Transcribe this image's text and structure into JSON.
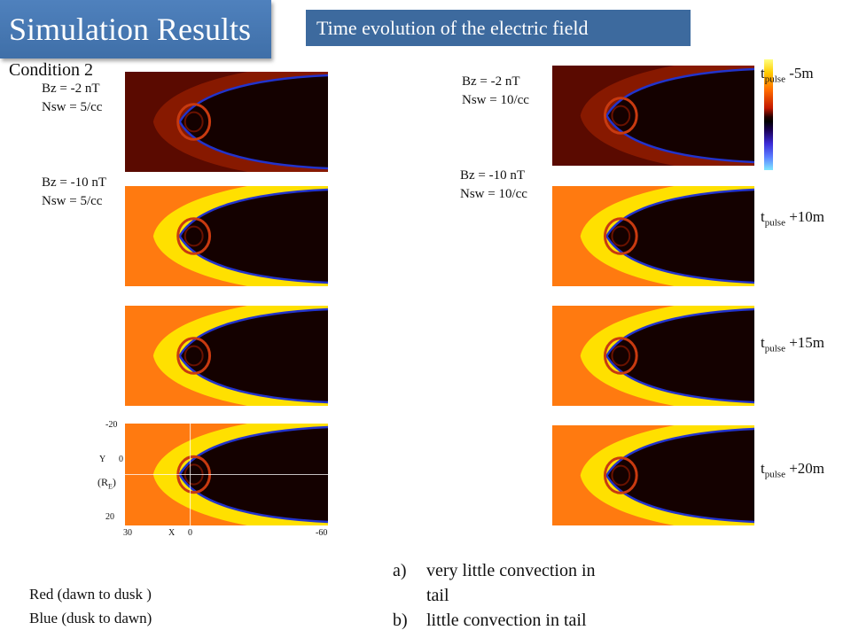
{
  "title": "Simulation Results",
  "subtitle": "Time evolution of the electric field",
  "condition": "Condition 2",
  "left_labels": [
    {
      "bz": "Bz = -2 nT",
      "nsw": "Nsw = 5/cc"
    },
    {
      "bz": "Bz = -10 nT",
      "nsw": "Nsw = 5/cc"
    }
  ],
  "right_labels": [
    {
      "bz": "Bz = -2 nT",
      "nsw": "Nsw = 10/cc"
    },
    {
      "bz": "Bz = -10 nT",
      "nsw": "Nsw = 10/cc"
    }
  ],
  "time_labels": [
    {
      "t": "t",
      "sub": "pulse",
      "offset": " -5m"
    },
    {
      "t": "t",
      "sub": "pulse",
      "offset": " +10m"
    },
    {
      "t": "t",
      "sub": "pulse",
      "offset": " +15m"
    },
    {
      "t": "t",
      "sub": "pulse",
      "offset": " +20m"
    }
  ],
  "axes": {
    "y_top": "-20",
    "y_label": "Y",
    "y_zero": "0",
    "y_unit": "(R",
    "y_unit_sub": "E",
    "y_unit_close": ")",
    "y_bottom": "20",
    "x_left": "30",
    "x_label": "X",
    "x_zero": "0",
    "x_right": "-60"
  },
  "notes": [
    {
      "marker": "a)",
      "text": "very little convection in",
      "cont": "tail"
    },
    {
      "marker": "b)",
      "text": " little convection in tail"
    }
  ],
  "legend": {
    "red": "Red (dawn to dusk )",
    "blue": "Blue (dusk to dawn)"
  },
  "colors": {
    "title_bg": "#4f81bd",
    "subtitle_bg": "#3d6a9e",
    "field_bg": "#ff7a10",
    "sheath": "#ffe600",
    "boundary": "#2233cc"
  },
  "panel_levels": [
    0.05,
    0.75,
    0.8,
    0.85,
    0.2,
    0.7,
    0.75,
    0.8
  ]
}
